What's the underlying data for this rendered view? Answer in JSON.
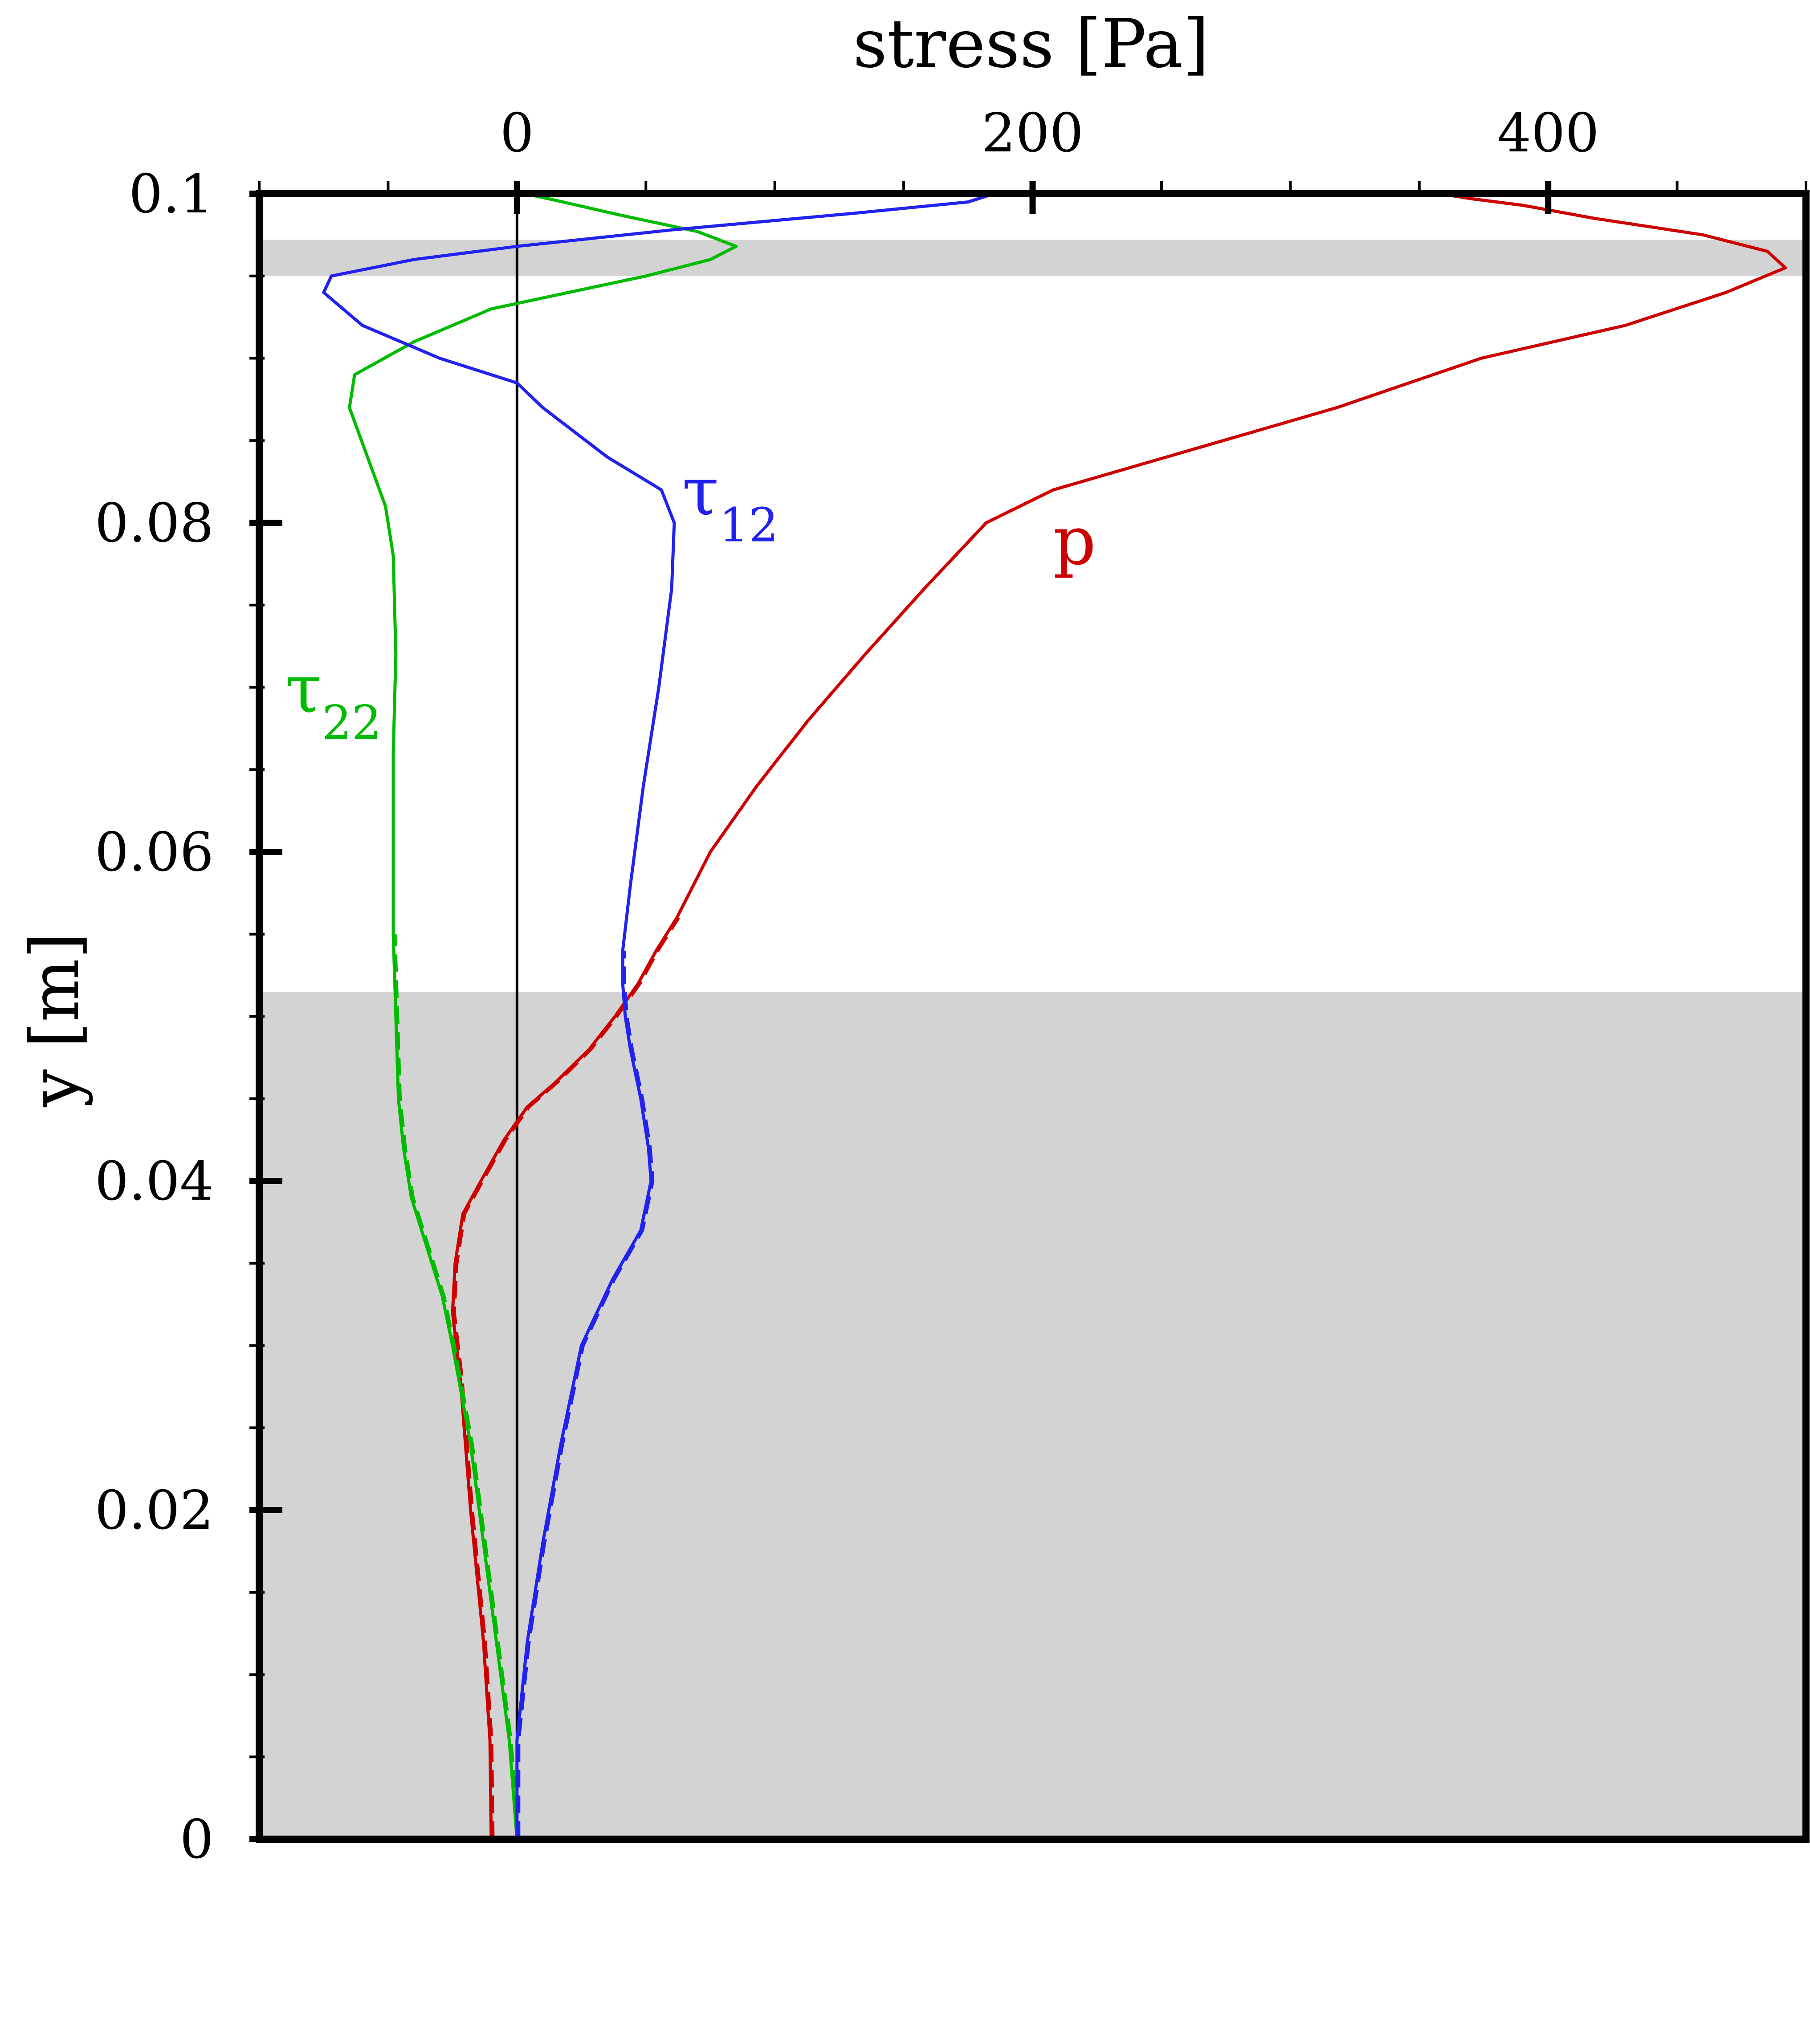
{
  "chart_data": {
    "type": "line",
    "xlabel": "stress [Pa]",
    "ylabel": "y [m]",
    "xlim": [
      -100,
      500
    ],
    "ylim": [
      0,
      0.1
    ],
    "x_axis_position": "top",
    "x_ticks": [
      0,
      200,
      400
    ],
    "x_tick_labels": [
      "0",
      "200",
      "400"
    ],
    "y_ticks": [
      0,
      0.02,
      0.04,
      0.06,
      0.08,
      0.1
    ],
    "y_tick_labels": [
      "0",
      "0.02",
      "0.04",
      "0.06",
      "0.08",
      "0.1"
    ],
    "grid": false,
    "shaded_bands_y": [
      [
        0.095,
        0.0972
      ],
      [
        0,
        0.0515
      ]
    ],
    "shade_color": "#d3d3d3",
    "zero_line_x": 0,
    "series": [
      {
        "name": "p",
        "color": "#cc0000",
        "points": [
          [
            -10,
            0
          ],
          [
            -10.5,
            0.006
          ],
          [
            -13,
            0.012
          ],
          [
            -18,
            0.02
          ],
          [
            -22,
            0.028
          ],
          [
            -25,
            0.032
          ],
          [
            -24,
            0.035
          ],
          [
            -21,
            0.038
          ],
          [
            -14,
            0.04
          ],
          [
            -5,
            0.0425
          ],
          [
            4,
            0.0445
          ],
          [
            15,
            0.046
          ],
          [
            28,
            0.048
          ],
          [
            38,
            0.05
          ],
          [
            47,
            0.052
          ],
          [
            54,
            0.054
          ],
          [
            62,
            0.056
          ],
          [
            75,
            0.06
          ],
          [
            93,
            0.064
          ],
          [
            113,
            0.068
          ],
          [
            135,
            0.072
          ],
          [
            158,
            0.076
          ],
          [
            182,
            0.08
          ],
          [
            208,
            0.082
          ],
          [
            252,
            0.084
          ],
          [
            318,
            0.087
          ],
          [
            374,
            0.09
          ],
          [
            430,
            0.092
          ],
          [
            469,
            0.094
          ],
          [
            492,
            0.0955
          ],
          [
            485,
            0.0965
          ],
          [
            460,
            0.0975
          ],
          [
            418,
            0.0985
          ],
          [
            390,
            0.0993
          ],
          [
            370,
            0.0997
          ],
          [
            358,
            0.1
          ]
        ]
      },
      {
        "name": "τ22",
        "color": "#00bb00",
        "points": [
          [
            0,
            0
          ],
          [
            -3,
            0.006
          ],
          [
            -8,
            0.012
          ],
          [
            -13,
            0.018
          ],
          [
            -18,
            0.024
          ],
          [
            -25,
            0.03
          ],
          [
            -29,
            0.033
          ],
          [
            -35,
            0.036
          ],
          [
            -41,
            0.039
          ],
          [
            -44,
            0.042
          ],
          [
            -46,
            0.045
          ],
          [
            -47,
            0.05
          ],
          [
            -48,
            0.055
          ],
          [
            -48,
            0.06
          ],
          [
            -48,
            0.066
          ],
          [
            -47,
            0.072
          ],
          [
            -48,
            0.078
          ],
          [
            -51,
            0.081
          ],
          [
            -58,
            0.084
          ],
          [
            -65,
            0.087
          ],
          [
            -63,
            0.089
          ],
          [
            -40,
            0.091
          ],
          [
            -10,
            0.093
          ],
          [
            20,
            0.094
          ],
          [
            50,
            0.095
          ],
          [
            75,
            0.096
          ],
          [
            85,
            0.0968
          ],
          [
            70,
            0.0977
          ],
          [
            40,
            0.0987
          ],
          [
            15,
            0.0996
          ],
          [
            3,
            0.1
          ]
        ]
      },
      {
        "name": "τ12",
        "color": "#2222ee",
        "points": [
          [
            0,
            0
          ],
          [
            0,
            0.006
          ],
          [
            4,
            0.012
          ],
          [
            10,
            0.018
          ],
          [
            17,
            0.024
          ],
          [
            25,
            0.03
          ],
          [
            37,
            0.034
          ],
          [
            48,
            0.037
          ],
          [
            52,
            0.04
          ],
          [
            51,
            0.042
          ],
          [
            48,
            0.045
          ],
          [
            44,
            0.048
          ],
          [
            42,
            0.05
          ],
          [
            41,
            0.052
          ],
          [
            41,
            0.054
          ],
          [
            44,
            0.058
          ],
          [
            49,
            0.064
          ],
          [
            55,
            0.07
          ],
          [
            60,
            0.076
          ],
          [
            61,
            0.08
          ],
          [
            56,
            0.082
          ],
          [
            35,
            0.084
          ],
          [
            10,
            0.087
          ],
          [
            0,
            0.0885
          ],
          [
            -30,
            0.09
          ],
          [
            -60,
            0.092
          ],
          [
            -75,
            0.094
          ],
          [
            -72,
            0.095
          ],
          [
            -40,
            0.096
          ],
          [
            0,
            0.0968
          ],
          [
            60,
            0.0978
          ],
          [
            130,
            0.0988
          ],
          [
            175,
            0.0995
          ],
          [
            185,
            0.1
          ]
        ]
      }
    ],
    "annotations": [
      {
        "text_base": "τ",
        "text_sub": "12",
        "color": "#2222ee",
        "x": 64,
        "y": 0.0805
      },
      {
        "text_base": "p",
        "text_sub": "",
        "color": "#cc0000",
        "x": 208,
        "y": 0.0775
      },
      {
        "text_base": "τ",
        "text_sub": "22",
        "color": "#00bb00",
        "x": -90,
        "y": 0.0685
      }
    ]
  }
}
